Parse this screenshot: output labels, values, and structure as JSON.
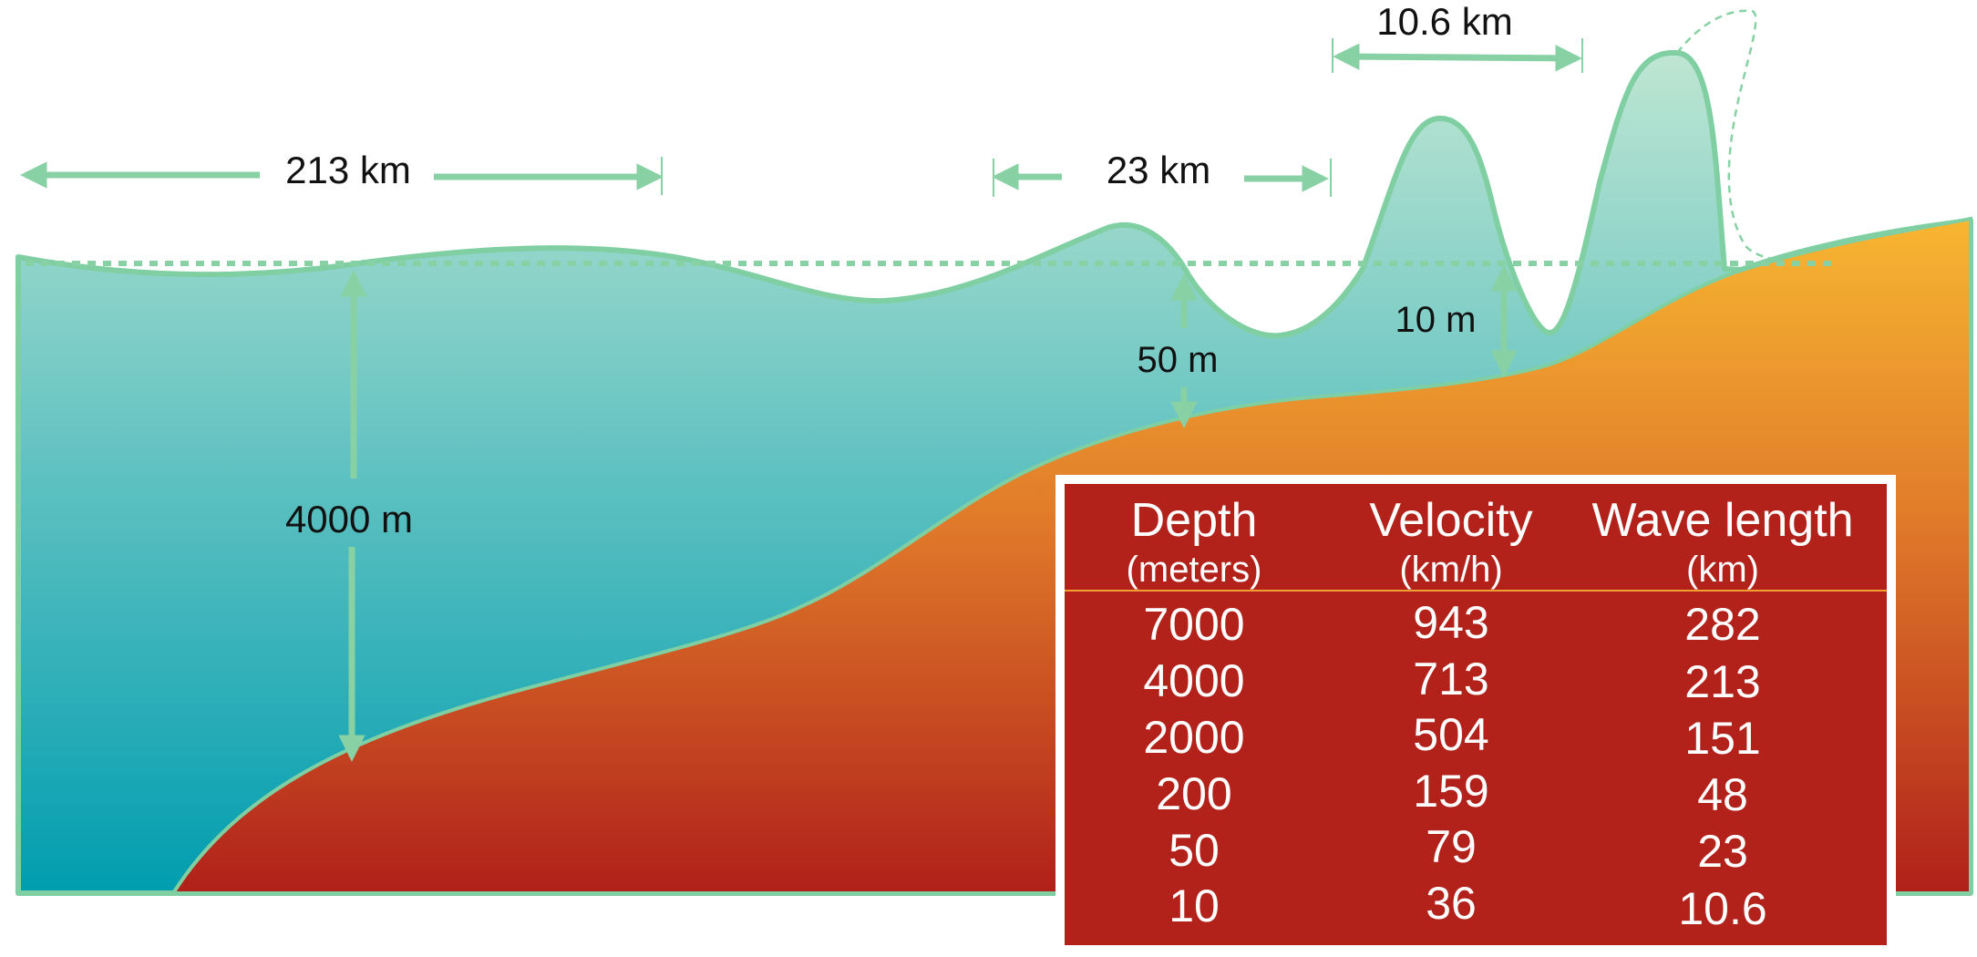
{
  "colors": {
    "water_top": "#bfe6d2",
    "water_bottom": "#009db0",
    "water_outline": "#7fcfa3",
    "land_top": "#f7b631",
    "land_bottom": "#b0201a",
    "table_bg": "#b2221a",
    "table_border": "#ffffff",
    "header_rule": "#f0a030",
    "arrow": "#88d1a4",
    "text": "#111111",
    "table_text": "#ffffff"
  },
  "labels": {
    "wavelength_deep": "213 km",
    "wavelength_mid": "23 km",
    "wavelength_shallow": "10.6 km",
    "depth_deep": "4000 m",
    "depth_mid": "50 m",
    "depth_shallow": "10 m"
  },
  "table": {
    "headers": [
      {
        "title": "Depth",
        "unit": "(meters)"
      },
      {
        "title": "Velocity",
        "unit": "(km/h)"
      },
      {
        "title": "Wave length",
        "unit": "(km)"
      }
    ],
    "rows": [
      [
        "7000",
        "943",
        "282"
      ],
      [
        "4000",
        "713",
        "213"
      ],
      [
        "2000",
        "504",
        "151"
      ],
      [
        "200",
        "159",
        "48"
      ],
      [
        "50",
        "79",
        "23"
      ],
      [
        "10",
        "36",
        "10.6"
      ]
    ]
  }
}
